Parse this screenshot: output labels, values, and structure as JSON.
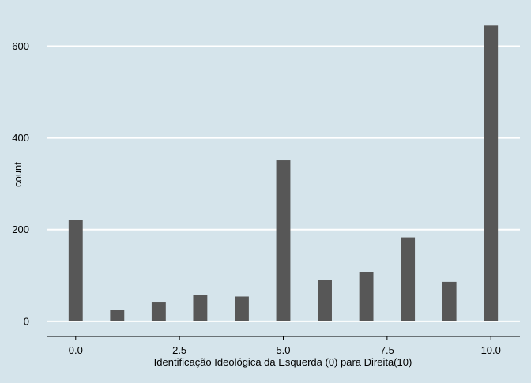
{
  "colors": {
    "background": "#d5e4eb",
    "bar": "#575757",
    "grid": "#ffffff",
    "axis": "#000000"
  },
  "chart_data": {
    "type": "bar",
    "title": "",
    "xlabel": "Identificação Ideológica da Esquerda (0) para Direita(10)",
    "ylabel": "count",
    "x": [
      0,
      1,
      2,
      3,
      4,
      5,
      6,
      7,
      8,
      9,
      10
    ],
    "values": [
      221,
      25,
      41,
      57,
      54,
      351,
      91,
      107,
      183,
      86,
      645
    ],
    "xlim": [
      -0.7,
      10.7
    ],
    "ylim": [
      -33,
      680
    ],
    "x_ticks": [
      0,
      2.5,
      5,
      7.5,
      10
    ],
    "x_tick_labels": [
      "0.0",
      "2.5",
      "5.0",
      "7.5",
      "10.0"
    ],
    "y_ticks": [
      0,
      200,
      400,
      600
    ],
    "y_tick_labels": [
      "0",
      "200",
      "400",
      "600"
    ],
    "grid": "horizontal"
  }
}
